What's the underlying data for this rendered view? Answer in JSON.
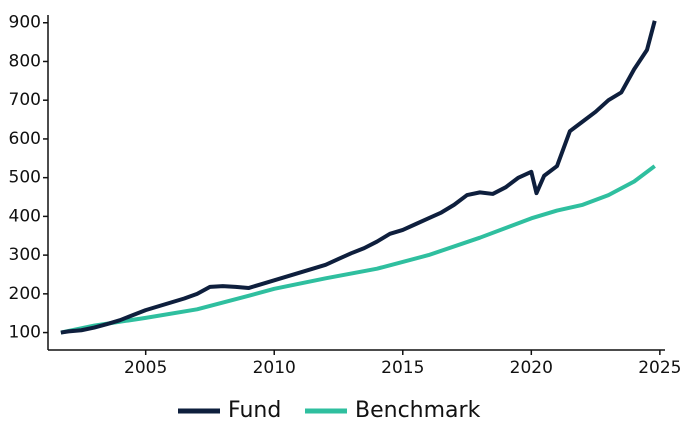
{
  "chart_data": {
    "type": "line",
    "series": [
      {
        "name": "Fund",
        "color": "#0e1f3d",
        "x": [
          2001.7,
          2002,
          2002.5,
          2003,
          2003.5,
          2004,
          2004.5,
          2005,
          2005.5,
          2006,
          2006.5,
          2007,
          2007.5,
          2008,
          2008.5,
          2009,
          2009.5,
          2010,
          2010.5,
          2011,
          2011.5,
          2012,
          2012.5,
          2013,
          2013.5,
          2014,
          2014.5,
          2015,
          2015.5,
          2016,
          2016.5,
          2017,
          2017.5,
          2018,
          2018.5,
          2019,
          2019.5,
          2020,
          2020.2,
          2020.5,
          2021,
          2021.5,
          2022,
          2022.5,
          2023,
          2023.5,
          2024,
          2024.5,
          2024.8
        ],
        "values": [
          100,
          103,
          106,
          113,
          122,
          132,
          145,
          158,
          168,
          178,
          188,
          200,
          218,
          220,
          218,
          215,
          225,
          235,
          245,
          255,
          265,
          275,
          290,
          305,
          318,
          335,
          355,
          365,
          380,
          395,
          410,
          430,
          455,
          462,
          458,
          475,
          500,
          515,
          460,
          505,
          530,
          620,
          645,
          670,
          700,
          720,
          780,
          830,
          905
        ]
      },
      {
        "name": "Benchmark",
        "color": "#2fbf9f",
        "x": [
          2001.7,
          2003,
          2005,
          2007,
          2009,
          2010,
          2012,
          2014,
          2016,
          2018,
          2020,
          2021,
          2022,
          2023,
          2024,
          2024.8
        ],
        "values": [
          100,
          118,
          138,
          160,
          195,
          213,
          240,
          265,
          300,
          345,
          395,
          415,
          430,
          455,
          490,
          530
        ]
      }
    ],
    "xlim": [
      2001.2,
      2025.2
    ],
    "xticks": [
      2005,
      2010,
      2015,
      2020,
      2025
    ],
    "ylim": [
      55,
      920
    ],
    "yticks": [
      100,
      200,
      300,
      400,
      500,
      600,
      700,
      800,
      900
    ],
    "legend": "bottom"
  }
}
